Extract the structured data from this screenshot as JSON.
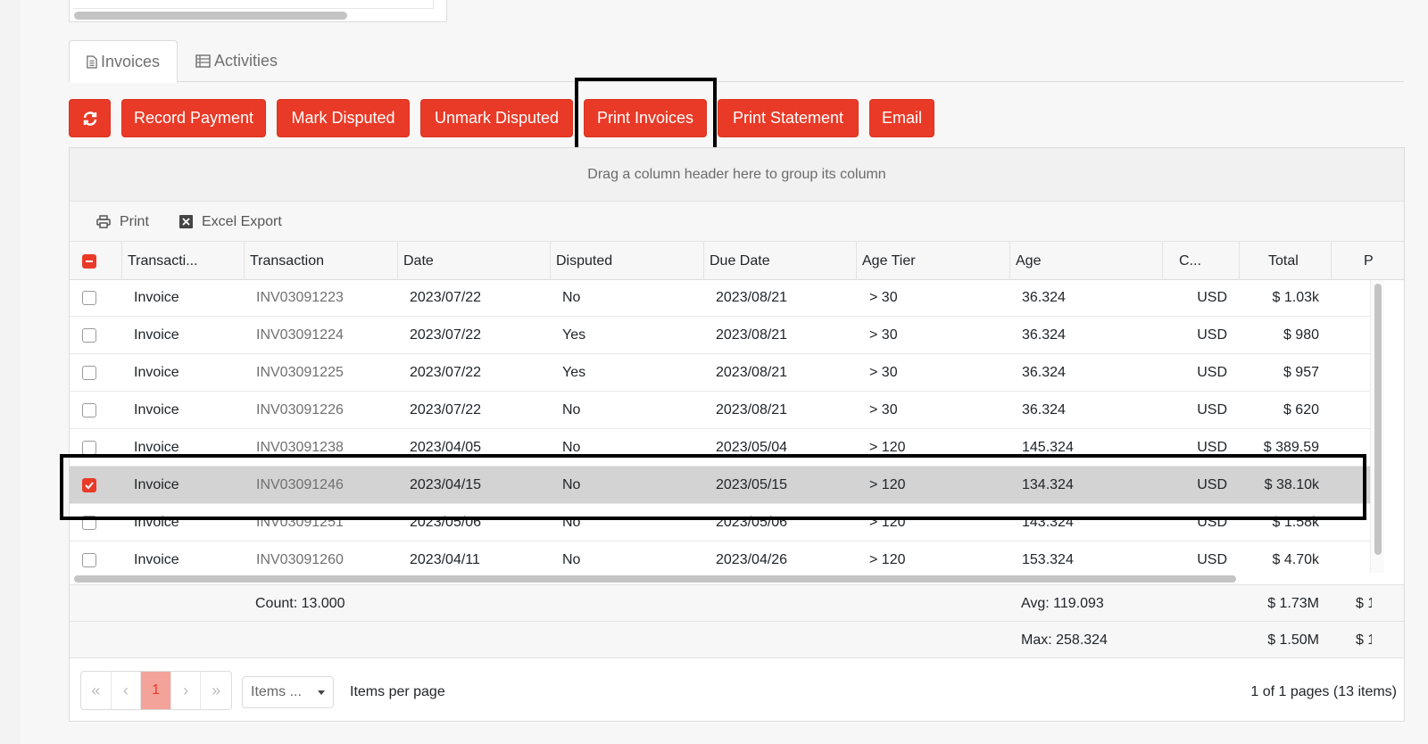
{
  "tabs": [
    {
      "label": "Invoices",
      "icon": "file-text-icon",
      "active": true
    },
    {
      "label": "Activities",
      "icon": "table-list-icon",
      "active": false
    }
  ],
  "toolbar": {
    "refresh_icon": "refresh-icon",
    "buttons": [
      "Record Payment",
      "Mark Disputed",
      "Unmark Disputed",
      "Print Invoices",
      "Print Statement",
      "Email"
    ],
    "highlighted": "Print Invoices"
  },
  "grid": {
    "group_panel_text": "Drag a column header here to group its column",
    "tools": {
      "print": "Print",
      "excel": "Excel Export"
    },
    "columns": [
      "Transacti...",
      "Transaction",
      "Date",
      "Disputed",
      "Due Date",
      "Age Tier",
      "Age",
      "C...",
      "Total",
      "P"
    ],
    "rows": [
      {
        "type": "Invoice",
        "number": "INV03091223",
        "date": "2023/07/22",
        "disputed": "No",
        "due": "2023/08/21",
        "tier": "> 30",
        "age": "36.324",
        "currency": "USD",
        "total": "$ 1.03k",
        "selected": false
      },
      {
        "type": "Invoice",
        "number": "INV03091224",
        "date": "2023/07/22",
        "disputed": "Yes",
        "due": "2023/08/21",
        "tier": "> 30",
        "age": "36.324",
        "currency": "USD",
        "total": "$ 980",
        "selected": false
      },
      {
        "type": "Invoice",
        "number": "INV03091225",
        "date": "2023/07/22",
        "disputed": "Yes",
        "due": "2023/08/21",
        "tier": "> 30",
        "age": "36.324",
        "currency": "USD",
        "total": "$ 957",
        "selected": false
      },
      {
        "type": "Invoice",
        "number": "INV03091226",
        "date": "2023/07/22",
        "disputed": "No",
        "due": "2023/08/21",
        "tier": "> 30",
        "age": "36.324",
        "currency": "USD",
        "total": "$ 620",
        "selected": false
      },
      {
        "type": "Invoice",
        "number": "INV03091238",
        "date": "2023/04/05",
        "disputed": "No",
        "due": "2023/05/04",
        "tier": "> 120",
        "age": "145.324",
        "currency": "USD",
        "total": "$ 389.59",
        "selected": false
      },
      {
        "type": "Invoice",
        "number": "INV03091246",
        "date": "2023/04/15",
        "disputed": "No",
        "due": "2023/05/15",
        "tier": "> 120",
        "age": "134.324",
        "currency": "USD",
        "total": "$ 38.10k",
        "selected": true
      },
      {
        "type": "Invoice",
        "number": "INV03091251",
        "date": "2023/05/06",
        "disputed": "No",
        "due": "2023/05/06",
        "tier": "> 120",
        "age": "143.324",
        "currency": "USD",
        "total": "$ 1.58k",
        "selected": false
      },
      {
        "type": "Invoice",
        "number": "INV03091260",
        "date": "2023/04/11",
        "disputed": "No",
        "due": "2023/04/26",
        "tier": "> 120",
        "age": "153.324",
        "currency": "USD",
        "total": "$ 4.70k",
        "selected": false
      }
    ],
    "footer": {
      "count": "Count: 13.000",
      "avg": "Avg: 119.093",
      "max": "Max: 258.324",
      "total_sum": "$ 1.73M",
      "total_max": "$ 1.50M",
      "extra_1": "$ 1",
      "extra_2": "$ 1"
    }
  },
  "pager": {
    "first": "«",
    "prev": "‹",
    "current_page": "1",
    "next": "›",
    "last": "»",
    "items_select": "Items ...",
    "items_per_page": "Items per page",
    "info": "1 of 1 pages (13 items)"
  },
  "colors": {
    "accent": "#e93a27",
    "selected_row": "#d3d3d3"
  }
}
